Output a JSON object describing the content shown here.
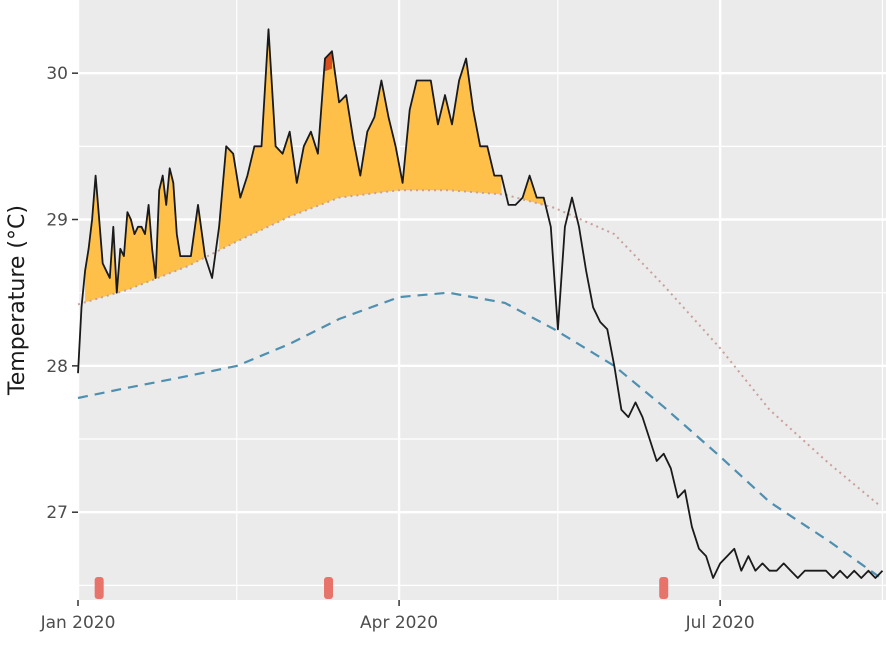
{
  "chart_data": {
    "type": "line",
    "title": "",
    "xlabel": "",
    "ylabel": "Temperature (°C)",
    "xlim": [
      "2020-01-01",
      "2020-08-17"
    ],
    "ylim": [
      26.4,
      30.5
    ],
    "grid": true,
    "legend": "none",
    "x_ticks": [
      {
        "date": "2020-01-01",
        "label": "Jan 2020"
      },
      {
        "date": "2020-04-01",
        "label": "Apr 2020"
      },
      {
        "date": "2020-07-01",
        "label": "Jul 2020"
      }
    ],
    "x_minor_ticks": [
      "2020-02-15",
      "2020-05-16",
      "2020-08-16"
    ],
    "y_ticks": [
      27,
      28,
      29,
      30
    ],
    "y_minor_ticks": [
      26.5,
      27.5,
      28.5,
      29.5
    ],
    "colors": {
      "panel": "#ebebeb",
      "grid": "#ffffff",
      "observed": "#1a1a1a",
      "climatology": "#4f8fb0",
      "threshold": "#c8a09a",
      "fill_moderate": "#ffc04a",
      "fill_strong": "#d94e1c",
      "event_marker": "#e8736b"
    },
    "series": [
      {
        "role": "observed",
        "style": "solid",
        "x": [
          "2020-01-01",
          "2020-01-02",
          "2020-01-03",
          "2020-01-04",
          "2020-01-05",
          "2020-01-06",
          "2020-01-07",
          "2020-01-08",
          "2020-01-09",
          "2020-01-10",
          "2020-01-11",
          "2020-01-12",
          "2020-01-13",
          "2020-01-14",
          "2020-01-15",
          "2020-01-16",
          "2020-01-17",
          "2020-01-18",
          "2020-01-19",
          "2020-01-20",
          "2020-01-21",
          "2020-01-22",
          "2020-01-23",
          "2020-01-24",
          "2020-01-25",
          "2020-01-26",
          "2020-01-27",
          "2020-01-28",
          "2020-01-29",
          "2020-01-30",
          "2020-01-31",
          "2020-02-02",
          "2020-02-04",
          "2020-02-06",
          "2020-02-08",
          "2020-02-10",
          "2020-02-12",
          "2020-02-14",
          "2020-02-16",
          "2020-02-18",
          "2020-02-20",
          "2020-02-22",
          "2020-02-24",
          "2020-02-26",
          "2020-02-28",
          "2020-03-01",
          "2020-03-03",
          "2020-03-05",
          "2020-03-07",
          "2020-03-09",
          "2020-03-11",
          "2020-03-13",
          "2020-03-15",
          "2020-03-17",
          "2020-03-19",
          "2020-03-21",
          "2020-03-23",
          "2020-03-25",
          "2020-03-27",
          "2020-03-29",
          "2020-03-31",
          "2020-04-02",
          "2020-04-04",
          "2020-04-06",
          "2020-04-08",
          "2020-04-10",
          "2020-04-12",
          "2020-04-14",
          "2020-04-16",
          "2020-04-18",
          "2020-04-20",
          "2020-04-22",
          "2020-04-24",
          "2020-04-26",
          "2020-04-28",
          "2020-04-30",
          "2020-05-02",
          "2020-05-04",
          "2020-05-06",
          "2020-05-08",
          "2020-05-10",
          "2020-05-12",
          "2020-05-14",
          "2020-05-16",
          "2020-05-18",
          "2020-05-20",
          "2020-05-22",
          "2020-05-24",
          "2020-05-26",
          "2020-05-28",
          "2020-05-30",
          "2020-06-01",
          "2020-06-03",
          "2020-06-05",
          "2020-06-07",
          "2020-06-09",
          "2020-06-11",
          "2020-06-13",
          "2020-06-15",
          "2020-06-17",
          "2020-06-19",
          "2020-06-21",
          "2020-06-23",
          "2020-06-25",
          "2020-06-27",
          "2020-06-29",
          "2020-07-01",
          "2020-07-03",
          "2020-07-05",
          "2020-07-07",
          "2020-07-09",
          "2020-07-11",
          "2020-07-13",
          "2020-07-15",
          "2020-07-17",
          "2020-07-19",
          "2020-07-21",
          "2020-07-23",
          "2020-07-25",
          "2020-07-27",
          "2020-07-29",
          "2020-07-31",
          "2020-08-02",
          "2020-08-04",
          "2020-08-06",
          "2020-08-08",
          "2020-08-10",
          "2020-08-12",
          "2020-08-14",
          "2020-08-16"
        ],
        "y": [
          27.95,
          28.4,
          28.65,
          28.8,
          29.0,
          29.3,
          29.0,
          28.7,
          28.65,
          28.6,
          28.95,
          28.5,
          28.8,
          28.75,
          29.05,
          29.0,
          28.9,
          28.95,
          28.95,
          28.9,
          29.1,
          28.8,
          28.6,
          29.2,
          29.3,
          29.1,
          29.35,
          29.25,
          28.9,
          28.75,
          28.75,
          28.75,
          29.1,
          28.75,
          28.6,
          28.95,
          29.5,
          29.45,
          29.15,
          29.3,
          29.5,
          29.5,
          30.3,
          29.5,
          29.45,
          29.6,
          29.25,
          29.5,
          29.6,
          29.45,
          30.1,
          30.15,
          29.8,
          29.85,
          29.55,
          29.3,
          29.6,
          29.7,
          29.95,
          29.7,
          29.5,
          29.25,
          29.75,
          29.95,
          29.95,
          29.95,
          29.65,
          29.85,
          29.65,
          29.95,
          30.1,
          29.75,
          29.5,
          29.5,
          29.3,
          29.3,
          29.1,
          29.1,
          29.15,
          29.3,
          29.15,
          29.15,
          28.95,
          28.25,
          28.95,
          29.15,
          28.95,
          28.65,
          28.4,
          28.3,
          28.25,
          28.0,
          27.7,
          27.65,
          27.75,
          27.65,
          27.5,
          27.35,
          27.4,
          27.3,
          27.1,
          27.15,
          26.9,
          26.75,
          26.7,
          26.55,
          26.65,
          26.7,
          26.75,
          26.6,
          26.7,
          26.6,
          26.65,
          26.6,
          26.6,
          26.65,
          26.6,
          26.55,
          26.6,
          26.6,
          26.6,
          26.6,
          26.55,
          26.6,
          26.55,
          26.6,
          26.55,
          26.6,
          26.55,
          26.6
        ]
      },
      {
        "role": "climatology",
        "style": "dashed",
        "x": [
          "2020-01-01",
          "2020-01-15",
          "2020-02-01",
          "2020-02-15",
          "2020-03-01",
          "2020-03-15",
          "2020-04-01",
          "2020-04-15",
          "2020-05-01",
          "2020-05-15",
          "2020-06-01",
          "2020-06-15",
          "2020-07-01",
          "2020-07-15",
          "2020-08-01",
          "2020-08-15"
        ],
        "y": [
          27.78,
          27.85,
          27.93,
          28.0,
          28.15,
          28.32,
          28.47,
          28.5,
          28.43,
          28.25,
          28.0,
          27.72,
          27.38,
          27.07,
          26.8,
          26.56
        ]
      },
      {
        "role": "threshold",
        "style": "dotted",
        "x": [
          "2020-01-01",
          "2020-01-15",
          "2020-02-01",
          "2020-02-15",
          "2020-03-01",
          "2020-03-15",
          "2020-04-01",
          "2020-04-15",
          "2020-05-01",
          "2020-05-15",
          "2020-06-01",
          "2020-06-15",
          "2020-07-01",
          "2020-07-15",
          "2020-08-01",
          "2020-08-15"
        ],
        "y": [
          28.42,
          28.52,
          28.68,
          28.85,
          29.02,
          29.15,
          29.2,
          29.2,
          29.17,
          29.08,
          28.9,
          28.55,
          28.12,
          27.7,
          27.33,
          27.05
        ]
      }
    ],
    "event_markers": [
      "2020-01-07",
      "2020-03-12",
      "2020-06-15"
    ]
  }
}
